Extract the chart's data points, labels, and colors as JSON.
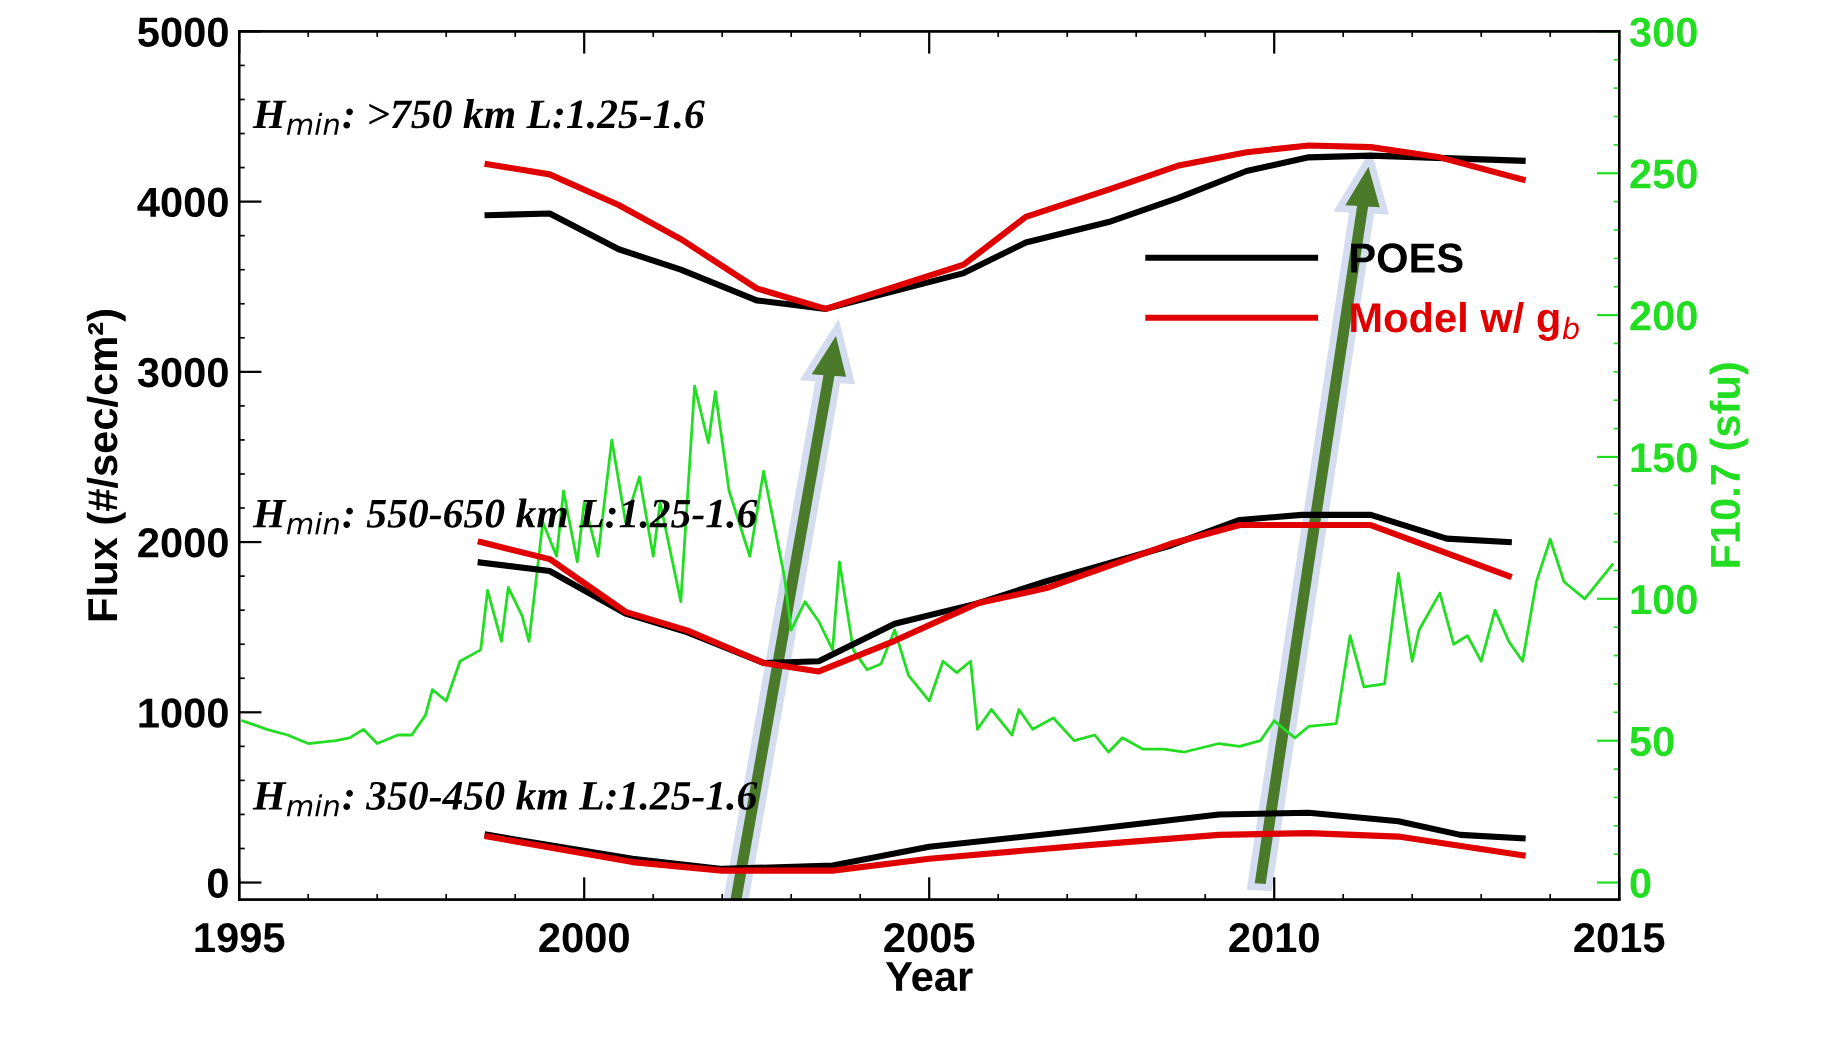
{
  "chart_data": {
    "type": "line",
    "xlabel": "Year",
    "ylabel": "Flux (#/sec/cm²)",
    "y2label": "F10.7 (sfu)",
    "xlim": [
      1995,
      2015
    ],
    "xticks": [
      1995,
      2000,
      2005,
      2010,
      2015
    ],
    "ylim": [
      -100,
      5000
    ],
    "yticks": [
      0,
      1000,
      2000,
      3000,
      4000,
      5000
    ],
    "y2lim": [
      -6,
      300
    ],
    "y2ticks": [
      0,
      50,
      100,
      150,
      200,
      250,
      300
    ],
    "grid": false,
    "legend": "right",
    "marker": "none",
    "line_style": "solid",
    "annotations": [
      "H$_{min}$: >750 km L:1.25-1.6",
      "H$_{min}$: 550-650 km L:1.25-1.6",
      "H$_{min}$: 350-450 km L:1.25-1.6"
    ],
    "series": [
      {
        "name": "POES",
        "color": "#000000",
        "x": [
          1998.6,
          1999.5,
          2000.5,
          2001.4,
          2002.5,
          2003.5,
          2005.5,
          2006.4,
          2007.6,
          2008.6,
          2009.6,
          2010.5,
          2011.4,
          2013.6
        ],
        "values": [
          3920,
          3930,
          3720,
          3600,
          3420,
          3370,
          3580,
          3760,
          3880,
          4020,
          4180,
          4260,
          4270,
          4240
        ]
      },
      {
        "name": "Model w/ g$_{b}$",
        "color": "#e00000",
        "x": [
          1998.6,
          1999.5,
          2000.5,
          2001.4,
          2002.5,
          2003.5,
          2005.5,
          2006.4,
          2007.6,
          2008.6,
          2009.6,
          2010.5,
          2011.4,
          2012.4,
          2013.6
        ],
        "values": [
          4220,
          4160,
          3980,
          3780,
          3490,
          3370,
          3630,
          3910,
          4070,
          4210,
          4290,
          4330,
          4320,
          4260,
          4130
        ]
      },
      {
        "color": "#000000",
        "x": [
          1998.5,
          1999.5,
          2000.6,
          2001.5,
          2002.6,
          2003.4,
          2004.5,
          2005.7,
          2006.7,
          2008.5,
          2009.5,
          2010.4,
          2011.4,
          2012.5,
          2013.4
        ],
        "values": [
          1880,
          1830,
          1580,
          1470,
          1290,
          1300,
          1520,
          1640,
          1770,
          1980,
          2130,
          2160,
          2160,
          2020,
          2000
        ]
      },
      {
        "color": "#e00000",
        "x": [
          1998.5,
          1999.5,
          2000.6,
          2001.5,
          2002.6,
          2003.4,
          2004.5,
          2005.7,
          2006.7,
          2008.5,
          2009.5,
          2011.4,
          2013.4
        ],
        "values": [
          2000,
          1900,
          1590,
          1480,
          1290,
          1240,
          1420,
          1640,
          1730,
          1990,
          2100,
          2100,
          1800
        ]
      },
      {
        "color": "#000000",
        "x": [
          1998.6,
          2000.7,
          2002.0,
          2003.6,
          2005.0,
          2007.3,
          2009.2,
          2010.5,
          2011.8,
          2012.7,
          2013.6
        ],
        "values": [
          280,
          140,
          80,
          100,
          210,
          310,
          400,
          410,
          360,
          280,
          260
        ]
      },
      {
        "color": "#e00000",
        "x": [
          1998.6,
          2000.7,
          2002.0,
          2003.6,
          2005.0,
          2007.3,
          2009.2,
          2010.5,
          2011.8,
          2013.6
        ],
        "values": [
          270,
          120,
          70,
          70,
          140,
          220,
          280,
          290,
          270,
          160
        ]
      },
      {
        "color": "#22dd22",
        "axis": "y2",
        "x": [
          1995.05,
          1995.4,
          1995.7,
          1996.0,
          1996.4,
          1996.6,
          1996.8,
          1997.0,
          1997.3,
          1997.5,
          1997.7,
          1997.8,
          1998.0,
          1998.2,
          1998.5,
          1998.6,
          1998.8,
          1998.9,
          1999.1,
          1999.2,
          1999.4,
          1999.6,
          1999.7,
          1999.9,
          2000.0,
          2000.2,
          2000.4,
          2000.6,
          2000.8,
          2001.0,
          2001.1,
          2001.4,
          2001.6,
          2001.8,
          2001.9,
          2002.1,
          2002.4,
          2002.6,
          2002.9,
          2003.0,
          2003.2,
          2003.4,
          2003.6,
          2003.7,
          2003.9,
          2004.1,
          2004.3,
          2004.5,
          2004.7,
          2005.0,
          2005.2,
          2005.4,
          2005.6,
          2005.7,
          2005.9,
          2006.2,
          2006.3,
          2006.5,
          2006.8,
          2007.1,
          2007.4,
          2007.6,
          2007.8,
          2008.1,
          2008.4,
          2008.7,
          2009.2,
          2009.5,
          2009.8,
          2010.0,
          2010.3,
          2010.5,
          2010.9,
          2011.1,
          2011.3,
          2011.6,
          2011.8,
          2012.0,
          2012.1,
          2012.4,
          2012.6,
          2012.8,
          2013.0,
          2013.2,
          2013.4,
          2013.6,
          2013.8,
          2014.0,
          2014.2,
          2014.5,
          2014.9
        ],
        "values": [
          57,
          54,
          52,
          49,
          50,
          51,
          54,
          49,
          52,
          52,
          59,
          68,
          64,
          78,
          82,
          103,
          85,
          104,
          94,
          85,
          127,
          115,
          138,
          113,
          134,
          115,
          156,
          127,
          143,
          115,
          134,
          99,
          175,
          155,
          173,
          138,
          115,
          145,
          108,
          89,
          99,
          92,
          82,
          113,
          82,
          75,
          77,
          89,
          73,
          64,
          78,
          74,
          78,
          54,
          61,
          52,
          61,
          54,
          58,
          50,
          52,
          46,
          51,
          47,
          47,
          46,
          49,
          48,
          50,
          57,
          51,
          55,
          56,
          87,
          69,
          70,
          109,
          78,
          89,
          102,
          84,
          87,
          78,
          96,
          85,
          78,
          106,
          121,
          106,
          100,
          112
        ]
      }
    ]
  }
}
